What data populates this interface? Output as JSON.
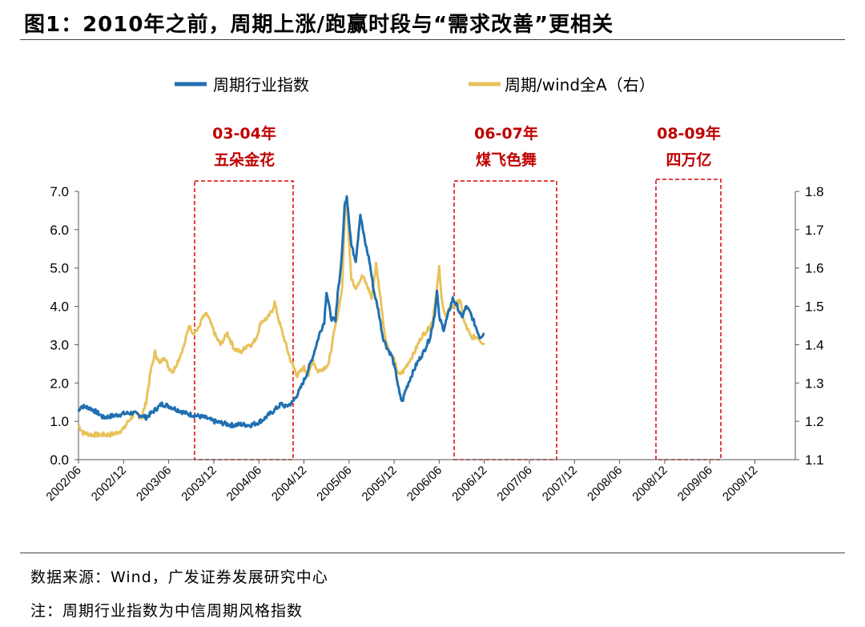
{
  "figure_title": "图1：2010年之前，周期上涨/跑赢时段与“需求改善”更相关",
  "source_text": "数据来源：Wind，广发证券发展研究中心",
  "note_text": "注：周期行业指数为中信周期风格指数",
  "colors": {
    "series1": "#1f6fb0",
    "series2": "#e8c35c",
    "box": "#e00000",
    "label": "#c00000"
  },
  "chart_data": {
    "type": "line",
    "legend_location": "top",
    "x_tick_labels": [
      "2002/06",
      "2002/12",
      "2003/06",
      "2003/12",
      "2004/06",
      "2004/12",
      "2005/06",
      "2005/12",
      "2006/06",
      "2006/12",
      "2007/06",
      "2007/12",
      "2008/06",
      "2008/12",
      "2009/06",
      "2009/12"
    ],
    "x_start": "2002/06",
    "x_end": "2010/05",
    "left_axis": {
      "min": 0.0,
      "max": 7.0,
      "ticks": [
        "0.0",
        "1.0",
        "2.0",
        "3.0",
        "4.0",
        "5.0",
        "6.0",
        "7.0"
      ]
    },
    "right_axis": {
      "min": 1.1,
      "max": 1.8,
      "ticks": [
        "1.1",
        "1.2",
        "1.3",
        "1.4",
        "1.5",
        "1.6",
        "1.7",
        "1.8"
      ]
    },
    "series": [
      {
        "name": "周期行业指数",
        "axis": "left",
        "points": [
          [
            0,
            1.25
          ],
          [
            0.05,
            1.4
          ],
          [
            0.25,
            1.35
          ],
          [
            0.45,
            1.2
          ],
          [
            0.55,
            1.1
          ],
          [
            0.8,
            1.15
          ],
          [
            1.0,
            1.2
          ],
          [
            1.2,
            1.22
          ],
          [
            1.4,
            1.15
          ],
          [
            1.5,
            1.1
          ],
          [
            1.7,
            1.3
          ],
          [
            1.85,
            1.45
          ],
          [
            2.0,
            1.4
          ],
          [
            2.2,
            1.3
          ],
          [
            2.4,
            1.2
          ],
          [
            2.6,
            1.15
          ],
          [
            2.8,
            1.1
          ],
          [
            3.0,
            1.0
          ],
          [
            3.2,
            0.95
          ],
          [
            3.4,
            0.9
          ],
          [
            3.6,
            0.92
          ],
          [
            3.8,
            0.9
          ],
          [
            3.95,
            0.95
          ],
          [
            4.1,
            1.05
          ],
          [
            4.25,
            1.2
          ],
          [
            4.4,
            1.35
          ],
          [
            4.5,
            1.45
          ],
          [
            4.6,
            1.38
          ],
          [
            4.75,
            1.5
          ],
          [
            4.9,
            1.8
          ],
          [
            5.05,
            2.2
          ],
          [
            5.2,
            2.7
          ],
          [
            5.35,
            3.3
          ],
          [
            5.45,
            3.6
          ],
          [
            5.5,
            4.4
          ],
          [
            5.6,
            3.7
          ],
          [
            5.7,
            3.6
          ],
          [
            5.75,
            4.4
          ],
          [
            5.8,
            4.8
          ],
          [
            5.85,
            5.5
          ],
          [
            5.9,
            6.6
          ],
          [
            5.95,
            6.9
          ],
          [
            6.05,
            5.6
          ],
          [
            6.15,
            5.2
          ],
          [
            6.25,
            6.4
          ],
          [
            6.35,
            5.7
          ],
          [
            6.45,
            5.2
          ],
          [
            6.55,
            4.4
          ],
          [
            6.65,
            3.9
          ],
          [
            6.75,
            3.2
          ],
          [
            6.85,
            2.9
          ],
          [
            6.95,
            2.7
          ],
          [
            7.05,
            2.2
          ],
          [
            7.12,
            1.7
          ],
          [
            7.18,
            1.5
          ],
          [
            7.25,
            1.8
          ],
          [
            7.35,
            2.1
          ],
          [
            7.5,
            2.5
          ],
          [
            7.65,
            2.8
          ],
          [
            7.8,
            3.2
          ],
          [
            7.9,
            3.8
          ],
          [
            7.95,
            4.4
          ],
          [
            8.0,
            3.7
          ],
          [
            8.1,
            3.4
          ],
          [
            8.2,
            3.8
          ],
          [
            8.3,
            4.2
          ],
          [
            8.4,
            4.0
          ],
          [
            8.5,
            3.7
          ],
          [
            8.6,
            4.0
          ],
          [
            8.7,
            3.8
          ],
          [
            8.8,
            3.5
          ],
          [
            8.9,
            3.2
          ],
          [
            9.0,
            3.3
          ]
        ]
      },
      {
        "name": "周期/wind全A（右）",
        "axis": "right",
        "points": [
          [
            0,
            1.19
          ],
          [
            0.1,
            1.17
          ],
          [
            0.3,
            1.165
          ],
          [
            0.5,
            1.165
          ],
          [
            0.7,
            1.165
          ],
          [
            0.85,
            1.17
          ],
          [
            1.0,
            1.18
          ],
          [
            1.1,
            1.2
          ],
          [
            1.25,
            1.22
          ],
          [
            1.4,
            1.21
          ],
          [
            1.5,
            1.25
          ],
          [
            1.6,
            1.33
          ],
          [
            1.7,
            1.38
          ],
          [
            1.8,
            1.35
          ],
          [
            1.9,
            1.37
          ],
          [
            2.0,
            1.34
          ],
          [
            2.1,
            1.33
          ],
          [
            2.25,
            1.37
          ],
          [
            2.35,
            1.4
          ],
          [
            2.45,
            1.45
          ],
          [
            2.55,
            1.43
          ],
          [
            2.65,
            1.44
          ],
          [
            2.75,
            1.47
          ],
          [
            2.85,
            1.48
          ],
          [
            2.95,
            1.45
          ],
          [
            3.05,
            1.42
          ],
          [
            3.15,
            1.4
          ],
          [
            3.3,
            1.43
          ],
          [
            3.45,
            1.39
          ],
          [
            3.6,
            1.38
          ],
          [
            3.75,
            1.4
          ],
          [
            3.85,
            1.4
          ],
          [
            3.95,
            1.42
          ],
          [
            4.05,
            1.46
          ],
          [
            4.2,
            1.47
          ],
          [
            4.3,
            1.49
          ],
          [
            4.35,
            1.51
          ],
          [
            4.45,
            1.46
          ],
          [
            4.55,
            1.42
          ],
          [
            4.7,
            1.36
          ],
          [
            4.85,
            1.32
          ],
          [
            5.0,
            1.34
          ],
          [
            5.1,
            1.32
          ],
          [
            5.2,
            1.36
          ],
          [
            5.3,
            1.33
          ],
          [
            5.45,
            1.34
          ],
          [
            5.55,
            1.35
          ],
          [
            5.65,
            1.42
          ],
          [
            5.75,
            1.48
          ],
          [
            5.85,
            1.55
          ],
          [
            5.9,
            1.73
          ],
          [
            5.95,
            1.78
          ],
          [
            6.05,
            1.57
          ],
          [
            6.15,
            1.55
          ],
          [
            6.3,
            1.58
          ],
          [
            6.45,
            1.54
          ],
          [
            6.5,
            1.52
          ],
          [
            6.6,
            1.61
          ],
          [
            6.7,
            1.52
          ],
          [
            6.8,
            1.42
          ],
          [
            6.9,
            1.38
          ],
          [
            7.0,
            1.36
          ],
          [
            7.1,
            1.32
          ],
          [
            7.2,
            1.33
          ],
          [
            7.3,
            1.35
          ],
          [
            7.45,
            1.38
          ],
          [
            7.6,
            1.42
          ],
          [
            7.75,
            1.44
          ],
          [
            7.85,
            1.46
          ],
          [
            7.95,
            1.55
          ],
          [
            8.0,
            1.6
          ],
          [
            8.05,
            1.52
          ],
          [
            8.15,
            1.47
          ],
          [
            8.25,
            1.5
          ],
          [
            8.35,
            1.5
          ],
          [
            8.45,
            1.52
          ],
          [
            8.55,
            1.46
          ],
          [
            8.7,
            1.42
          ],
          [
            8.85,
            1.42
          ],
          [
            9.0,
            1.4
          ]
        ]
      }
    ],
    "highlight_periods": [
      {
        "range_label": "03-04年",
        "event_label": "五朵金花"
      },
      {
        "range_label": "06-07年",
        "event_label": "煤飞色舞"
      },
      {
        "range_label": "08-09年",
        "event_label": "四万亿"
      }
    ]
  }
}
